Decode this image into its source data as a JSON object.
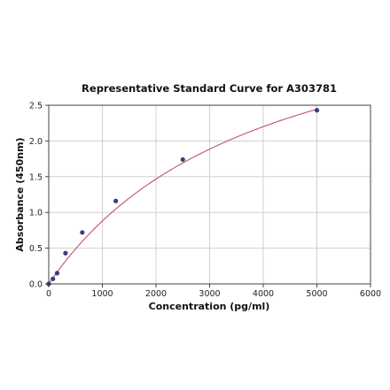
{
  "chart_data": {
    "type": "scatter",
    "title": "Representative Standard Curve for A303781",
    "xlabel": "Concentration (pg/ml)",
    "ylabel": "Absorbance (450nm)",
    "xlim": [
      0,
      6000
    ],
    "ylim": [
      0,
      2.5
    ],
    "xticks": [
      0,
      1000,
      2000,
      3000,
      4000,
      5000,
      6000
    ],
    "yticks": [
      0.0,
      0.5,
      1.0,
      1.5,
      2.0,
      2.5
    ],
    "xtick_labels": [
      "0",
      "1000",
      "2000",
      "3000",
      "4000",
      "5000",
      "6000"
    ],
    "ytick_labels": [
      "0.0",
      "0.5",
      "1.0",
      "1.5",
      "2.0",
      "2.5"
    ],
    "grid": true,
    "series": [
      {
        "points": [
          {
            "x": 0,
            "y": 0.0
          },
          {
            "x": 78,
            "y": 0.07
          },
          {
            "x": 156,
            "y": 0.15
          },
          {
            "x": 312,
            "y": 0.43
          },
          {
            "x": 625,
            "y": 0.72
          },
          {
            "x": 1250,
            "y": 1.16
          },
          {
            "x": 2500,
            "y": 1.74
          },
          {
            "x": 5000,
            "y": 2.43
          }
        ],
        "marker_color": "#3a3f78"
      }
    ],
    "fit_curve": {
      "type": "4PL",
      "a": 0.0,
      "b": 1.0,
      "c": 4000,
      "d": 4.4,
      "color": "#c0546c"
    }
  }
}
